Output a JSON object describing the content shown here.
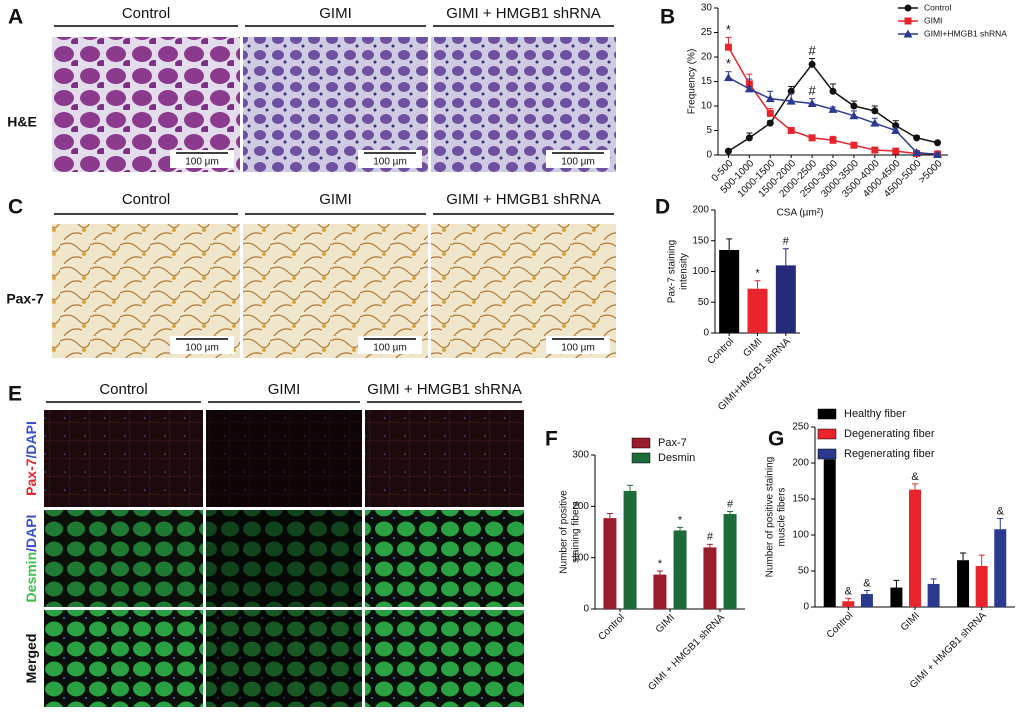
{
  "panels": [
    {
      "label": "A",
      "columns": [
        "Control",
        "GIMI",
        "GIMI + HMGB1 shRNA"
      ],
      "row_labels": [
        "H&E"
      ],
      "scale_bar": "100 µm"
    },
    {
      "label": "C",
      "columns": [
        "Control",
        "GIMI",
        "GIMI + HMGB1 shRNA"
      ],
      "row_labels": [
        "Pax-7"
      ],
      "scale_bar": "100 µm"
    },
    {
      "label": "E",
      "columns": [
        "Control",
        "GIMI",
        "GIMI + HMGB1 shRNA"
      ],
      "row_labels": [
        [
          "Pax-7",
          "/DAPI"
        ],
        [
          "Desmin",
          "/DAPI"
        ],
        [
          "Merged"
        ]
      ]
    }
  ],
  "chart_data": [
    {
      "type": "line",
      "label": "B",
      "ylabel": [
        "Frequency (%)"
      ],
      "xlabel": "CSA (µm²)",
      "categories": [
        "0-500",
        "500-1000",
        "1000-1500",
        "1500-2000",
        "2000-2500",
        "2500-3000",
        "3000-3500",
        "3500-4000",
        "4000-4500",
        "4500-5000",
        ">5000"
      ],
      "ylim": [
        0,
        30
      ],
      "yticks": [
        0,
        5,
        10,
        15,
        20,
        25,
        30
      ],
      "series": [
        {
          "name": "Control",
          "color": "#111111",
          "marker": "circle",
          "values": [
            0.8,
            3.5,
            6.5,
            13,
            18.5,
            13,
            10,
            9,
            6,
            3.5,
            2.5
          ],
          "errors": [
            0.3,
            1,
            0.5,
            1,
            1.2,
            1.5,
            1,
            1,
            1,
            0.5,
            0.3
          ],
          "annotations": [
            null,
            null,
            null,
            null,
            "#",
            null,
            null,
            null,
            null,
            null,
            null
          ]
        },
        {
          "name": "GIMI",
          "color": "#e8242c",
          "marker": "square",
          "values": [
            22,
            14.5,
            8.5,
            5,
            3.5,
            3,
            2,
            1,
            0.8,
            0.3,
            0.2
          ],
          "errors": [
            2,
            2,
            1,
            0.5,
            0.3,
            0.8,
            0.3,
            0.3,
            0.3,
            0.2,
            0.2
          ],
          "annotations": [
            "*",
            null,
            null,
            null,
            null,
            null,
            null,
            null,
            null,
            null,
            null
          ]
        },
        {
          "name": "GIMI+HMGB1 shRNA",
          "color": "#2b3a8f",
          "marker": "triangle",
          "values": [
            15.8,
            13.5,
            11.5,
            11,
            10.5,
            9.3,
            8,
            6.5,
            5,
            0.5,
            0.1
          ],
          "errors": [
            1.2,
            2,
            1.5,
            1.5,
            1,
            0.5,
            1,
            1,
            0.5,
            0.3,
            0.2
          ],
          "annotations": [
            "*",
            null,
            null,
            null,
            "#",
            null,
            null,
            null,
            null,
            null,
            null
          ]
        }
      ]
    },
    {
      "type": "bar",
      "label": "D",
      "ylabel": [
        "Pax-7 staining",
        "intensity"
      ],
      "categories": [
        "Control",
        "GIMI",
        "GIMI+HMGB1 shRNA"
      ],
      "values": [
        135,
        72,
        110
      ],
      "errors": [
        18,
        13,
        27
      ],
      "colors": [
        "#000000",
        "#e8242c",
        "#262a7a"
      ],
      "annotations": [
        null,
        "*",
        "#"
      ],
      "ylim": [
        0,
        200
      ],
      "yticks": [
        0,
        50,
        100,
        150,
        200
      ]
    },
    {
      "type": "bar",
      "label": "F",
      "ylabel": [
        "Number of positive",
        "staining fibers"
      ],
      "categories": [
        "Control",
        "GIMI",
        "GIMI + HMGB1 shRNA"
      ],
      "ylim": [
        0,
        300
      ],
      "yticks": [
        0,
        100,
        200,
        300
      ],
      "series": [
        {
          "name": "Pax-7",
          "color": "#9b1c2c",
          "values": [
            177,
            67,
            120
          ],
          "errors": [
            9,
            7,
            6
          ],
          "annotations": [
            null,
            "*",
            "#"
          ]
        },
        {
          "name": "Desmin",
          "color": "#1e6b3a",
          "values": [
            230,
            153,
            185
          ],
          "errors": [
            11,
            6,
            5
          ],
          "annotations": [
            null,
            "*",
            "#"
          ]
        }
      ]
    },
    {
      "type": "bar",
      "label": "G",
      "ylabel": [
        "Number of positive staining",
        "muscle fibers"
      ],
      "categories": [
        "Control",
        "GIMI",
        "GIMI + HMGB1 shRNA"
      ],
      "ylim": [
        0,
        250
      ],
      "yticks": [
        0,
        50,
        100,
        150,
        200,
        250
      ],
      "series": [
        {
          "name": "Healthy fiber",
          "color": "#000000",
          "values": [
            205,
            27,
            65
          ],
          "errors": [
            13,
            10,
            10
          ],
          "annotations": [
            null,
            null,
            null
          ]
        },
        {
          "name": "Degenerating fiber",
          "color": "#e8242c",
          "values": [
            8,
            163,
            57
          ],
          "errors": [
            4,
            8,
            15
          ],
          "annotations": [
            "&",
            "&",
            null
          ]
        },
        {
          "name": "Regenerating fiber",
          "color": "#2b3a8f",
          "values": [
            18,
            32,
            108
          ],
          "errors": [
            5,
            7,
            15
          ],
          "annotations": [
            "&",
            null,
            "&"
          ]
        }
      ]
    }
  ]
}
